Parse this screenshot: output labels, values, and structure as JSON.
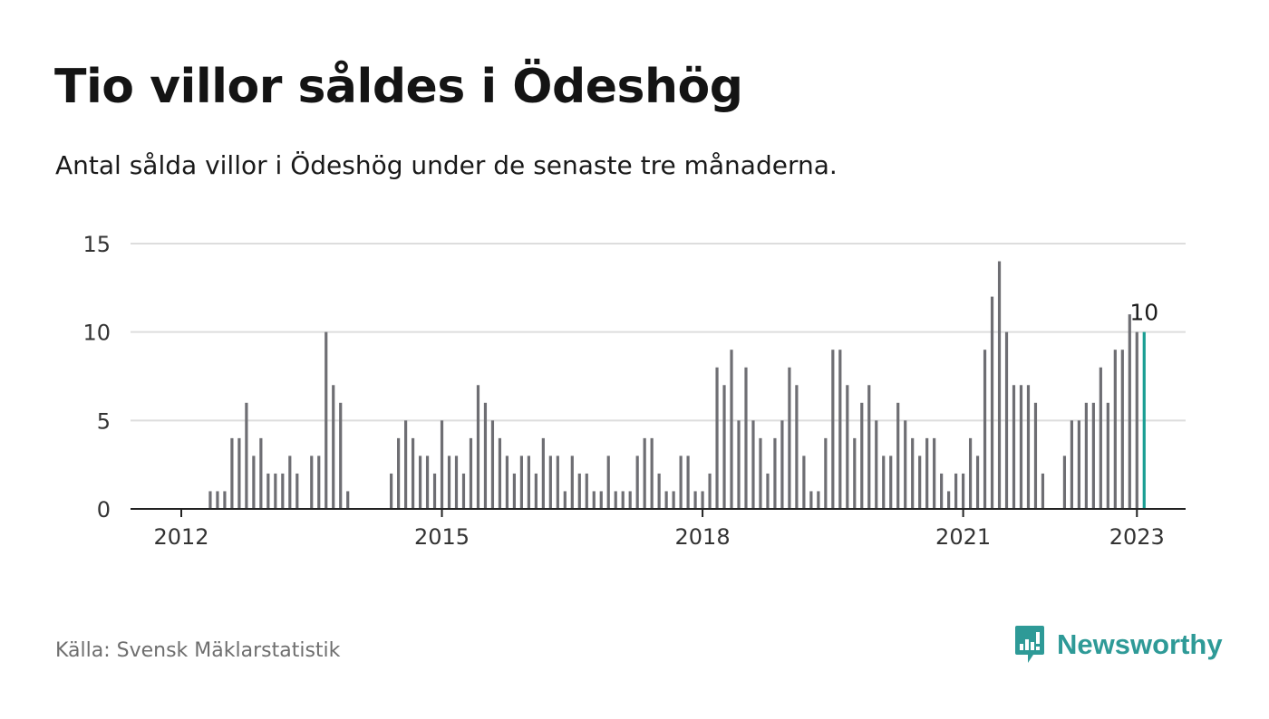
{
  "title": "Tio villor såldes i Ödeshög",
  "subtitle": "Antal sålda villor i Ödeshög under de senaste tre månaderna.",
  "source": "Källa: Svensk Mäklarstatistik",
  "brand": {
    "name": "Newsworthy",
    "icon": "newsworthy-logo-icon",
    "color": "#2e9a97"
  },
  "colors": {
    "bar": "#6e6e73",
    "highlight": "#1a9e93",
    "grid": "#dddddd",
    "axis": "#222222"
  },
  "chart_data": {
    "type": "bar",
    "x_start": "2012-01",
    "x_step": "month",
    "ylim": [
      0,
      15
    ],
    "yticks": [
      0,
      5,
      10,
      15
    ],
    "xticks": [
      "2012",
      "2015",
      "2018",
      "2021",
      "2023"
    ],
    "grid": true,
    "annotation": {
      "text": "10",
      "at": "last"
    },
    "values": [
      0,
      0,
      0,
      0,
      1,
      1,
      1,
      4,
      4,
      6,
      3,
      4,
      2,
      2,
      2,
      3,
      2,
      0,
      3,
      3,
      10,
      7,
      6,
      1,
      0,
      0,
      0,
      0,
      0,
      2,
      4,
      5,
      4,
      3,
      3,
      2,
      5,
      3,
      3,
      2,
      4,
      7,
      6,
      5,
      4,
      3,
      2,
      3,
      3,
      2,
      4,
      3,
      3,
      1,
      3,
      2,
      2,
      1,
      1,
      3,
      1,
      1,
      1,
      3,
      4,
      4,
      2,
      1,
      1,
      3,
      3,
      1,
      1,
      2,
      8,
      7,
      9,
      5,
      8,
      5,
      4,
      2,
      4,
      5,
      8,
      7,
      3,
      1,
      1,
      4,
      9,
      9,
      7,
      4,
      6,
      7,
      5,
      3,
      3,
      6,
      5,
      4,
      3,
      4,
      4,
      2,
      1,
      2,
      2,
      4,
      3,
      9,
      12,
      14,
      10,
      7,
      7,
      7,
      6,
      2,
      0,
      0,
      3,
      5,
      5,
      6,
      6,
      8,
      6,
      9,
      9,
      11,
      10,
      10
    ]
  }
}
